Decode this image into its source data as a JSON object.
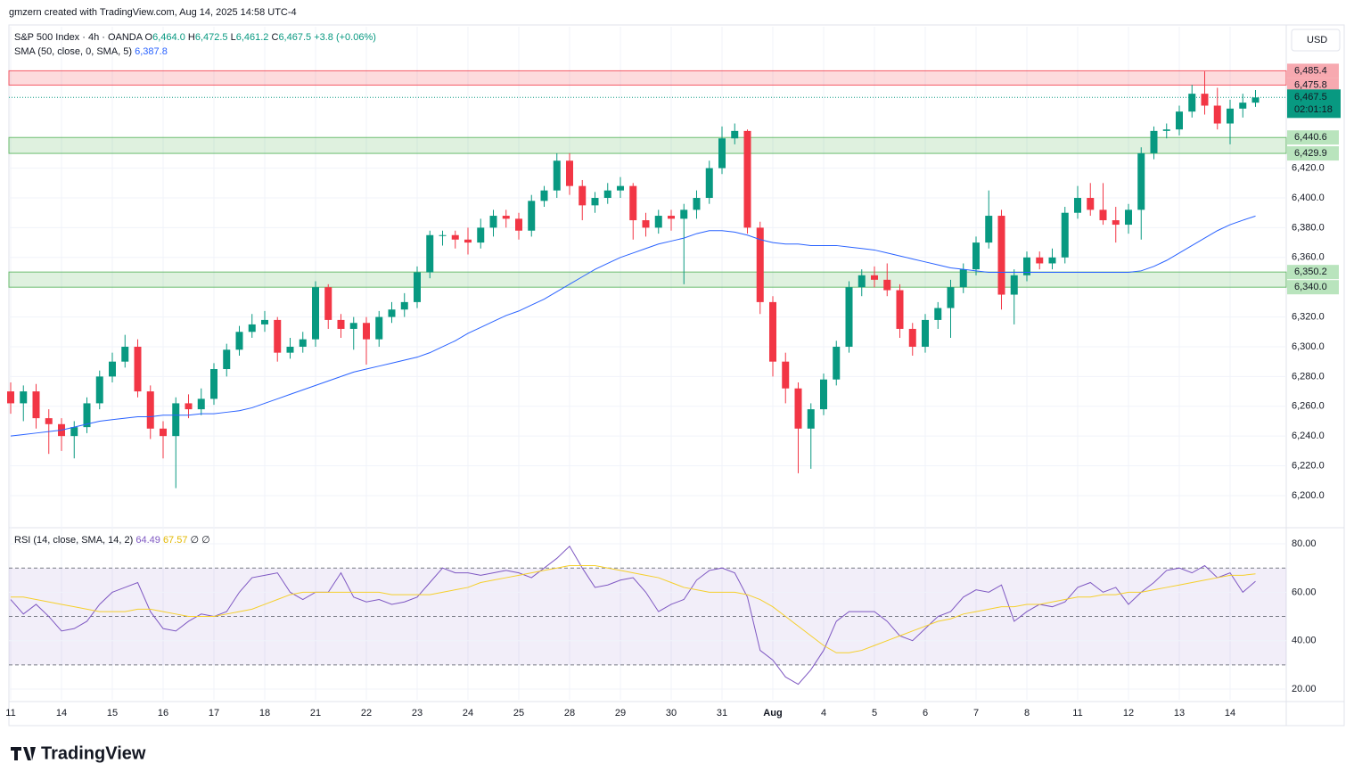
{
  "header": {
    "credit": "gmzern created with TradingView.com, Aug 14, 2025 14:58 UTC-4",
    "currency": "USD",
    "logo": "TradingView"
  },
  "legend": {
    "symbol": "S&P 500 Index · 4h · OANDA",
    "o_key": "O",
    "o": "6,464.0",
    "h_key": "H",
    "h": "6,472.5",
    "l_key": "L",
    "l": "6,461.2",
    "c_key": "C",
    "c": "6,467.5",
    "change": "+3.8 (+0.06%)",
    "sma": "SMA (50, close, 0, SMA, 5)",
    "sma_value": "6,387.8",
    "rsi": "RSI (14, close, SMA, 14, 2)",
    "rsi_value": "64.49",
    "rsi_sma_value": "67.57",
    "rsi_extra": "∅ ∅"
  },
  "chart_data": [
    {
      "type": "candlestick",
      "up_color": "#089981",
      "down_color": "#f23645",
      "categories": [
        "11",
        null,
        null,
        null,
        "14",
        null,
        null,
        null,
        "15",
        null,
        null,
        null,
        "16",
        null,
        null,
        null,
        "17",
        null,
        null,
        null,
        "18",
        null,
        null,
        null,
        "21",
        null,
        null,
        null,
        "22",
        null,
        null,
        null,
        "23",
        null,
        null,
        null,
        "24",
        null,
        null,
        null,
        "25",
        null,
        null,
        null,
        "28",
        null,
        null,
        null,
        "29",
        null,
        null,
        null,
        "30",
        null,
        null,
        null,
        "31",
        null,
        null,
        null,
        "Aug",
        null,
        null,
        null,
        "4",
        null,
        null,
        null,
        "5",
        null,
        null,
        null,
        "6",
        null,
        null,
        null,
        "7",
        null,
        null,
        null,
        "8",
        null,
        null,
        null,
        "11",
        null,
        null,
        null,
        "12",
        null,
        null,
        null,
        "13",
        null,
        null,
        null,
        "14",
        null,
        null
      ],
      "candles": [
        [
          6270,
          6276,
          6255,
          6262
        ],
        [
          6262,
          6274,
          6250,
          6270
        ],
        [
          6270,
          6275,
          6245,
          6252
        ],
        [
          6252,
          6258,
          6228,
          6248
        ],
        [
          6248,
          6252,
          6230,
          6240
        ],
        [
          6240,
          6250,
          6225,
          6246
        ],
        [
          6246,
          6266,
          6242,
          6262
        ],
        [
          6262,
          6284,
          6258,
          6280
        ],
        [
          6280,
          6296,
          6276,
          6290
        ],
        [
          6290,
          6308,
          6286,
          6300
        ],
        [
          6300,
          6305,
          6266,
          6270
        ],
        [
          6270,
          6274,
          6238,
          6245
        ],
        [
          6245,
          6250,
          6225,
          6240
        ],
        [
          6240,
          6266,
          6205,
          6262
        ],
        [
          6262,
          6268,
          6252,
          6258
        ],
        [
          6258,
          6272,
          6254,
          6265
        ],
        [
          6265,
          6289,
          6261,
          6285
        ],
        [
          6285,
          6302,
          6280,
          6298
        ],
        [
          6298,
          6314,
          6294,
          6310
        ],
        [
          6310,
          6322,
          6306,
          6315
        ],
        [
          6315,
          6324,
          6310,
          6318
        ],
        [
          6318,
          6320,
          6290,
          6296
        ],
        [
          6296,
          6306,
          6292,
          6300
        ],
        [
          6300,
          6310,
          6296,
          6305
        ],
        [
          6305,
          6344,
          6300,
          6340
        ],
        [
          6340,
          6342,
          6312,
          6318
        ],
        [
          6318,
          6322,
          6306,
          6312
        ],
        [
          6312,
          6320,
          6298,
          6316
        ],
        [
          6316,
          6320,
          6288,
          6305
        ],
        [
          6305,
          6324,
          6300,
          6320
        ],
        [
          6320,
          6330,
          6316,
          6325
        ],
        [
          6325,
          6336,
          6320,
          6330
        ],
        [
          6330,
          6354,
          6326,
          6350
        ],
        [
          6350,
          6378,
          6346,
          6375
        ],
        [
          6375,
          6378,
          6368,
          6375
        ],
        [
          6375,
          6378,
          6366,
          6372
        ],
        [
          6372,
          6380,
          6362,
          6370
        ],
        [
          6370,
          6386,
          6366,
          6380
        ],
        [
          6380,
          6392,
          6374,
          6388
        ],
        [
          6388,
          6392,
          6380,
          6386
        ],
        [
          6386,
          6390,
          6372,
          6378
        ],
        [
          6378,
          6402,
          6374,
          6398
        ],
        [
          6398,
          6408,
          6394,
          6405
        ],
        [
          6405,
          6430,
          6400,
          6425
        ],
        [
          6425,
          6430,
          6402,
          6408
        ],
        [
          6408,
          6412,
          6385,
          6395
        ],
        [
          6395,
          6404,
          6390,
          6400
        ],
        [
          6400,
          6410,
          6396,
          6405
        ],
        [
          6405,
          6414,
          6400,
          6408
        ],
        [
          6408,
          6410,
          6372,
          6385
        ],
        [
          6385,
          6390,
          6374,
          6380
        ],
        [
          6380,
          6392,
          6376,
          6388
        ],
        [
          6388,
          6392,
          6378,
          6386
        ],
        [
          6386,
          6396,
          6342,
          6392
        ],
        [
          6392,
          6405,
          6386,
          6400
        ],
        [
          6400,
          6425,
          6396,
          6420
        ],
        [
          6420,
          6448,
          6416,
          6440
        ],
        [
          6440,
          6450,
          6436,
          6445
        ],
        [
          6445,
          6446,
          6376,
          6380
        ],
        [
          6380,
          6384,
          6322,
          6330
        ],
        [
          6330,
          6334,
          6280,
          6290
        ],
        [
          6290,
          6296,
          6262,
          6272
        ],
        [
          6272,
          6276,
          6215,
          6245
        ],
        [
          6245,
          6262,
          6218,
          6258
        ],
        [
          6258,
          6282,
          6254,
          6278
        ],
        [
          6278,
          6304,
          6274,
          6300
        ],
        [
          6300,
          6344,
          6296,
          6340
        ],
        [
          6340,
          6352,
          6334,
          6348
        ],
        [
          6348,
          6354,
          6340,
          6345
        ],
        [
          6345,
          6356,
          6334,
          6338
        ],
        [
          6338,
          6342,
          6306,
          6312
        ],
        [
          6312,
          6316,
          6294,
          6300
        ],
        [
          6300,
          6322,
          6296,
          6318
        ],
        [
          6318,
          6330,
          6312,
          6326
        ],
        [
          6326,
          6345,
          6306,
          6340
        ],
        [
          6340,
          6356,
          6336,
          6352
        ],
        [
          6352,
          6374,
          6348,
          6370
        ],
        [
          6370,
          6405,
          6366,
          6388
        ],
        [
          6388,
          6392,
          6325,
          6335
        ],
        [
          6335,
          6352,
          6315,
          6348
        ],
        [
          6348,
          6364,
          6344,
          6360
        ],
        [
          6360,
          6364,
          6352,
          6356
        ],
        [
          6356,
          6366,
          6352,
          6360
        ],
        [
          6360,
          6394,
          6356,
          6390
        ],
        [
          6390,
          6408,
          6386,
          6400
        ],
        [
          6400,
          6410,
          6388,
          6392
        ],
        [
          6392,
          6410,
          6382,
          6385
        ],
        [
          6385,
          6394,
          6370,
          6382
        ],
        [
          6382,
          6396,
          6376,
          6392
        ],
        [
          6392,
          6434,
          6372,
          6430
        ],
        [
          6430,
          6448,
          6426,
          6445
        ],
        [
          6445,
          6450,
          6440,
          6446
        ],
        [
          6446,
          6462,
          6442,
          6458
        ],
        [
          6458,
          6476,
          6454,
          6470
        ],
        [
          6470,
          6485,
          6456,
          6462
        ],
        [
          6462,
          6474,
          6446,
          6450
        ],
        [
          6450,
          6466,
          6436,
          6460
        ],
        [
          6460,
          6470,
          6454,
          6464
        ],
        [
          6464,
          6472.5,
          6461.2,
          6467.5
        ]
      ],
      "series": [
        {
          "name": "SMA",
          "color": "#2962ff",
          "values": [
            6240,
            6241,
            6242,
            6243,
            6244,
            6246,
            6248,
            6250,
            6251,
            6252,
            6253,
            6253,
            6254,
            6254,
            6254,
            6255,
            6255,
            6256,
            6257,
            6259,
            6262,
            6265,
            6268,
            6271,
            6274,
            6277,
            6280,
            6283,
            6285,
            6287,
            6289,
            6291,
            6293,
            6296,
            6300,
            6304,
            6309,
            6313,
            6317,
            6321,
            6324,
            6328,
            6332,
            6337,
            6342,
            6347,
            6352,
            6356,
            6360,
            6363,
            6366,
            6369,
            6371,
            6373,
            6376,
            6378,
            6378,
            6377,
            6375,
            6372,
            6370,
            6369,
            6369,
            6368,
            6368,
            6368,
            6367,
            6366,
            6365,
            6363,
            6361,
            6359,
            6357,
            6355,
            6353,
            6352,
            6351,
            6350,
            6350,
            6350,
            6350,
            6350,
            6350,
            6350,
            6350,
            6350,
            6350,
            6350,
            6350,
            6351,
            6354,
            6358,
            6363,
            6368,
            6373,
            6378,
            6382,
            6385,
            6387.8
          ]
        }
      ],
      "zones": [
        {
          "low": 6475.8,
          "high": 6485.4,
          "low_label": "6,475.8",
          "high_label": "6,485.4",
          "color": "#f23645"
        },
        {
          "low": 6429.9,
          "high": 6440.6,
          "low_label": "6,429.9",
          "high_label": "6,440.6",
          "color": "#4caf50"
        },
        {
          "low": 6340.0,
          "high": 6350.2,
          "low_label": "6,340.0",
          "high_label": "6,350.2",
          "color": "#4caf50"
        }
      ],
      "last_price": {
        "value": 6467.5,
        "label": "6,467.5",
        "countdown": "02:01:18"
      },
      "ylim": [
        6179.6,
        6515
      ],
      "yticks": [
        {
          "value": 6200,
          "label": "6,200.0"
        },
        {
          "value": 6220,
          "label": "6,220.0"
        },
        {
          "value": 6240,
          "label": "6,240.0"
        },
        {
          "value": 6260,
          "label": "6,260.0"
        },
        {
          "value": 6280,
          "label": "6,280.0"
        },
        {
          "value": 6300,
          "label": "6,300.0"
        },
        {
          "value": 6320,
          "label": "6,320.0"
        },
        {
          "value": 6360,
          "label": "6,360.0"
        },
        {
          "value": 6380,
          "label": "6,380.0"
        },
        {
          "value": 6400,
          "label": "6,400.0"
        },
        {
          "value": 6420,
          "label": "6,420.0"
        }
      ],
      "grid": true
    },
    {
      "type": "line",
      "series": [
        {
          "name": "RSI",
          "color": "#7e57c2",
          "values": [
            57,
            51,
            55,
            50,
            44,
            45,
            48,
            55,
            60,
            62,
            64,
            52,
            45,
            44,
            48,
            51,
            50,
            52,
            60,
            66,
            67,
            68,
            60,
            57,
            60,
            60,
            68,
            58,
            56,
            57,
            55,
            56,
            58,
            64,
            70,
            68,
            68,
            67,
            68,
            69,
            68,
            66,
            70,
            74,
            79,
            70,
            62,
            63,
            65,
            66,
            60,
            52,
            55,
            57,
            65,
            69,
            70,
            68,
            58,
            36,
            32,
            25,
            22,
            28,
            36,
            48,
            52,
            52,
            52,
            48,
            42,
            40,
            45,
            50,
            52,
            58,
            61,
            60,
            63,
            48,
            52,
            55,
            54,
            56,
            62,
            64,
            60,
            62,
            55,
            60,
            64,
            69,
            70,
            68,
            71,
            66,
            68,
            60,
            64.49
          ]
        },
        {
          "name": "RSI SMA",
          "color": "#f5cf2c",
          "values": [
            58,
            58,
            57,
            56,
            55,
            54,
            53,
            52,
            52,
            52,
            53,
            53,
            52,
            51,
            50,
            50,
            50,
            51,
            52,
            53,
            55,
            57,
            59,
            60,
            60,
            60,
            60,
            60,
            60,
            60,
            59,
            59,
            59,
            59,
            60,
            61,
            62,
            64,
            65,
            66,
            67,
            68,
            69,
            70,
            71,
            71,
            71,
            70,
            69,
            68,
            67,
            66,
            64,
            62,
            61,
            60,
            60,
            60,
            59,
            57,
            54,
            50,
            46,
            42,
            38,
            35,
            35,
            36,
            38,
            40,
            42,
            44,
            46,
            48,
            49,
            51,
            52,
            53,
            54,
            54,
            55,
            55,
            56,
            57,
            58,
            58,
            59,
            59,
            60,
            60,
            61,
            62,
            63,
            64,
            65,
            66,
            67,
            67,
            67.57
          ]
        }
      ],
      "levels": [
        30,
        50,
        70
      ],
      "ylim": [
        15.6,
        85.9
      ],
      "yticks": [
        {
          "value": 20,
          "label": "20.00"
        },
        {
          "value": 40,
          "label": "40.00"
        },
        {
          "value": 60,
          "label": "60.00"
        },
        {
          "value": 80,
          "label": "80.00"
        }
      ],
      "grid": true
    }
  ]
}
